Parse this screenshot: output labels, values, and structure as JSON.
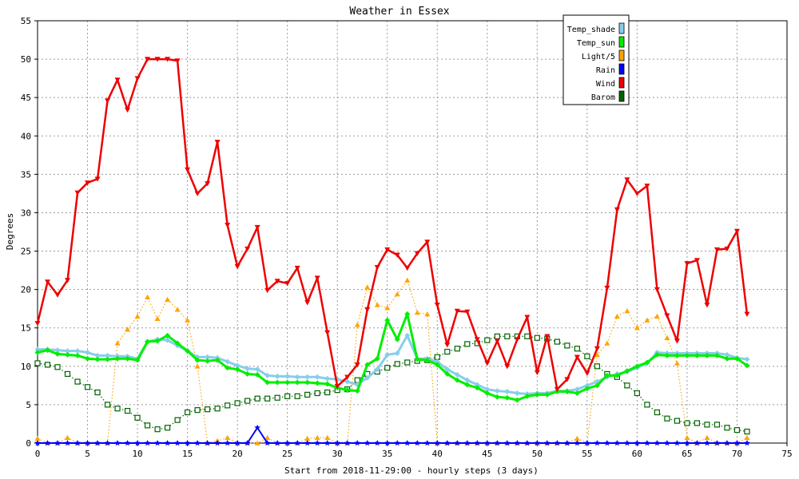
{
  "chart_data": {
    "type": "line",
    "title": "Weather in Essex",
    "xlabel": "Start from 2018-11-29:00 - hourly steps (3 days)",
    "ylabel": "Degrees",
    "xlim": [
      0,
      75
    ],
    "ylim": [
      0,
      55
    ],
    "xticks": [
      "0",
      "5",
      "10",
      "15",
      "20",
      "25",
      "30",
      "35",
      "40",
      "45",
      "50",
      "55",
      "60",
      "65",
      "70",
      "75"
    ],
    "yticks": [
      "0",
      "5",
      "10",
      "15",
      "20",
      "25",
      "30",
      "35",
      "40",
      "45",
      "50",
      "55"
    ],
    "grid": "dashed",
    "legend_position": "top-right",
    "series": [
      {
        "name": "Temp_shade",
        "color": "#87ceeb",
        "marker": "diamond",
        "values": [
          12.2,
          12.2,
          12.1,
          12.0,
          12.0,
          11.8,
          11.4,
          11.4,
          11.3,
          11.3,
          11.0,
          13.2,
          13.5,
          13.4,
          12.7,
          12.0,
          11.2,
          11.2,
          11.1,
          10.6,
          10.1,
          9.7,
          9.6,
          8.8,
          8.7,
          8.7,
          8.6,
          8.6,
          8.6,
          8.4,
          8.3,
          8.0,
          7.6,
          8.5,
          9.6,
          11.5,
          11.7,
          14.0,
          11.0,
          11.0,
          10.6,
          9.6,
          8.9,
          8.2,
          7.6,
          7.0,
          6.8,
          6.7,
          6.5,
          6.4,
          6.5,
          6.5,
          6.8,
          6.8,
          7.0,
          7.5,
          8.0,
          8.6,
          9.0,
          9.3,
          9.8,
          10.4,
          11.8,
          11.7,
          11.7,
          11.7,
          11.7,
          11.7,
          11.7,
          11.5,
          11.1,
          10.9
        ]
      },
      {
        "name": "Temp_sun",
        "color": "#00ee00",
        "marker": "diamond",
        "values": [
          11.8,
          12.1,
          11.6,
          11.5,
          11.4,
          11.0,
          10.9,
          10.9,
          11.0,
          11.0,
          10.8,
          13.2,
          13.3,
          14.0,
          13.0,
          12.0,
          10.8,
          10.7,
          10.8,
          9.8,
          9.6,
          9.0,
          8.9,
          7.9,
          7.9,
          7.9,
          7.9,
          7.9,
          7.8,
          7.7,
          7.2,
          6.9,
          6.8,
          10.2,
          11.0,
          16.0,
          13.5,
          16.8,
          10.9,
          10.8,
          10.2,
          9.0,
          8.2,
          7.6,
          7.2,
          6.5,
          6.0,
          5.9,
          5.6,
          6.1,
          6.3,
          6.3,
          6.7,
          6.7,
          6.5,
          7.1,
          7.5,
          8.8,
          8.8,
          9.4,
          10.0,
          10.5,
          11.5,
          11.4,
          11.4,
          11.4,
          11.4,
          11.4,
          11.4,
          11.0,
          11.0,
          10.1
        ]
      },
      {
        "name": "Light/5",
        "color": "#ffa500",
        "marker": "triangle-up",
        "values": [
          0.6,
          0.0,
          0.0,
          0.7,
          0.0,
          0.0,
          0.0,
          0.0,
          13.0,
          14.8,
          16.5,
          19.0,
          16.2,
          18.7,
          17.4,
          16.0,
          10.0,
          0.0,
          0.3,
          0.7,
          0.0,
          0.0,
          0.0,
          0.7,
          0.0,
          0.0,
          0.0,
          0.6,
          0.7,
          0.7,
          0.0,
          0.0,
          15.4,
          20.3,
          18.0,
          17.6,
          19.4,
          21.2,
          17.0,
          16.8,
          0.0,
          0.0,
          0.0,
          0.0,
          0.0,
          0.0,
          0.0,
          0.0,
          0.0,
          0.0,
          0.0,
          0.0,
          0.0,
          0.0,
          0.6,
          0.0,
          11.5,
          13.0,
          16.5,
          17.2,
          15.0,
          16.0,
          16.5,
          13.7,
          10.4,
          0.7,
          0.0,
          0.7,
          0.0,
          0.0,
          0.0,
          0.7
        ]
      },
      {
        "name": "Rain",
        "color": "#0000ff",
        "marker": "star",
        "values": [
          0,
          0,
          0,
          0,
          0,
          0,
          0,
          0,
          0,
          0,
          0,
          0,
          0,
          0,
          0,
          0,
          0,
          0,
          0,
          0,
          0,
          0,
          2.0,
          0,
          0,
          0,
          0,
          0,
          0,
          0,
          0,
          0,
          0,
          0,
          0,
          0,
          0,
          0,
          0,
          0,
          0,
          0,
          0,
          0,
          0,
          0,
          0,
          0,
          0,
          0,
          0,
          0,
          0,
          0,
          0,
          0,
          0,
          0,
          0,
          0,
          0,
          0,
          0,
          0,
          0,
          0,
          0,
          0,
          0,
          0,
          0,
          0
        ]
      },
      {
        "name": "Wind",
        "color": "#ee0000",
        "marker": "triangle-down",
        "values": [
          15.6,
          21.0,
          19.3,
          21.2,
          32.6,
          33.9,
          34.4,
          44.6,
          47.3,
          43.4,
          47.5,
          50.0,
          50.0,
          50.0,
          49.8,
          35.6,
          32.5,
          33.8,
          39.2,
          28.4,
          23.0,
          25.3,
          28.1,
          19.9,
          21.1,
          20.8,
          22.8,
          18.3,
          21.5,
          14.4,
          7.4,
          8.6,
          10.2,
          17.4,
          22.9,
          25.2,
          24.5,
          22.8,
          24.7,
          26.2,
          18.0,
          12.8,
          17.2,
          17.1,
          13.5,
          10.4,
          13.3,
          10.0,
          13.5,
          16.4,
          9.2,
          13.9,
          7.0,
          8.3,
          11.2,
          9.1,
          12.3,
          20.2,
          30.4,
          34.3,
          32.5,
          33.5,
          20.0,
          16.6,
          13.3,
          23.4,
          23.8,
          18.0,
          25.2,
          25.3,
          27.6,
          16.8
        ]
      },
      {
        "name": "Barom",
        "color": "#006400",
        "marker": "square",
        "values": [
          10.4,
          10.2,
          9.9,
          9.0,
          8.0,
          7.3,
          6.6,
          5.0,
          4.5,
          4.2,
          3.3,
          2.3,
          1.8,
          2.0,
          3.0,
          4.0,
          4.3,
          4.4,
          4.5,
          4.9,
          5.2,
          5.5,
          5.8,
          5.8,
          5.9,
          6.1,
          6.1,
          6.3,
          6.5,
          6.6,
          6.9,
          7.0,
          8.2,
          9.0,
          9.3,
          9.8,
          10.3,
          10.5,
          10.7,
          10.8,
          11.2,
          11.9,
          12.3,
          12.9,
          13.0,
          13.4,
          13.9,
          13.9,
          13.9,
          13.9,
          13.7,
          13.6,
          13.2,
          12.7,
          12.3,
          11.3,
          10.0,
          9.0,
          8.6,
          7.5,
          6.5,
          5.0,
          4.0,
          3.2,
          2.9,
          2.6,
          2.6,
          2.4,
          2.4,
          2.0,
          1.7,
          1.5
        ]
      }
    ]
  }
}
